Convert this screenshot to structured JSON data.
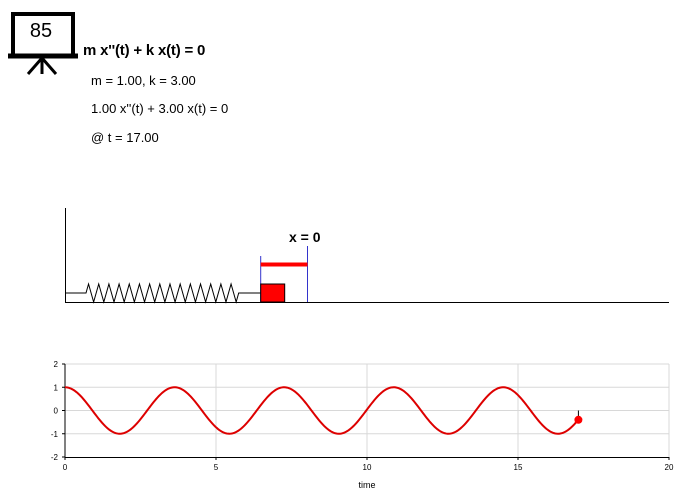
{
  "header": {
    "slide_number": "85",
    "equation": "m x''(t) + k x(t) = 0",
    "params": "m = 1.00, k = 3.00",
    "equation_values": "1.00 x''(t) + 3.00 x(t) = 0",
    "time_label": "@ t = 17.00"
  },
  "simulation": {
    "equilibrium_label": "x = 0",
    "displacement": -0.4
  },
  "colors": {
    "curve": "#dd0000",
    "mass": "#ff0000",
    "equilibrium_line": "#3333cc",
    "grid": "#d8d8d8"
  },
  "chart_data": {
    "type": "line",
    "title": "",
    "xlabel": "time",
    "ylabel": "",
    "xlim": [
      0,
      20
    ],
    "ylim": [
      -2,
      2
    ],
    "xticks": [
      "0",
      "5",
      "10",
      "15",
      "20"
    ],
    "yticks": [
      "2",
      "1",
      "0",
      "-1",
      "-2"
    ],
    "grid": true,
    "series": [
      {
        "equation": "x(t) = cos(sqrt(3) t)",
        "omega": 1.7320508,
        "amplitude": 1,
        "t_start": 0,
        "t_end": 17
      }
    ],
    "current_point": {
      "t": 17,
      "x": -0.4
    }
  }
}
